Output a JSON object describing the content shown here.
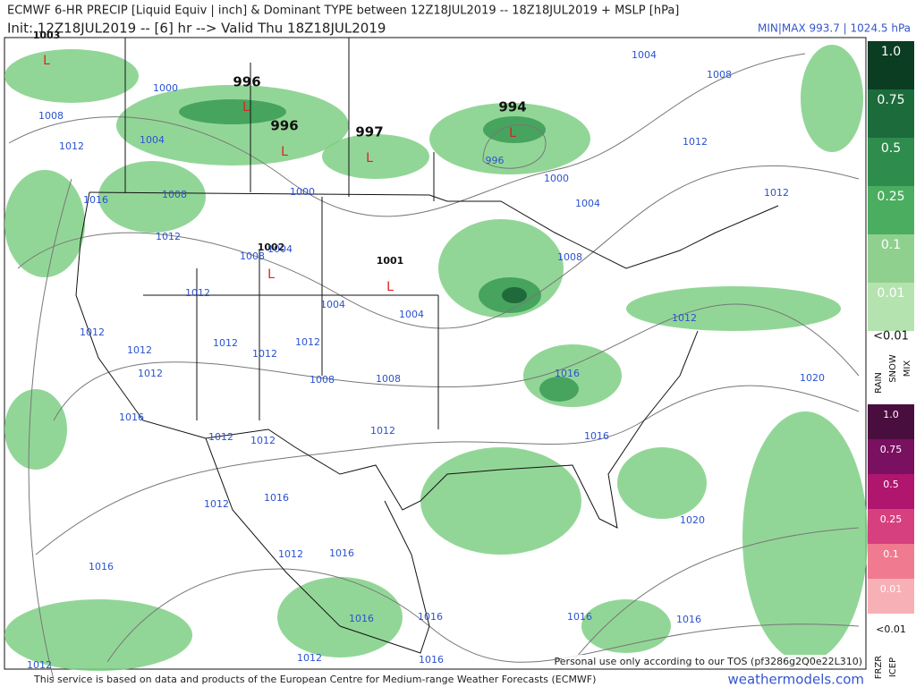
{
  "header": {
    "title": "ECMWF 6-HR PRECIP [Liquid Equiv | inch] & Dominant TYPE between 12Z18JUL2019 -- 18Z18JUL2019 + MSLP [hPa]",
    "init": "Init: 12Z18JUL2019 -- [6] hr --> Valid Thu 18Z18JUL2019",
    "minmax": "MIN|MAX 993.7 | 1024.5 hPa"
  },
  "map": {
    "low_marker": "L",
    "lows": [
      1003,
      996,
      996,
      997,
      994,
      1002,
      1001
    ],
    "isobar_labels": [
      1004,
      1008,
      1000,
      1008,
      1012,
      1004,
      1012,
      996,
      1000,
      1012,
      1000,
      1004,
      1016,
      1008,
      1012,
      1004,
      1008,
      1008,
      1012,
      1004,
      1004,
      1012,
      1012,
      1012,
      1012,
      1012,
      1012,
      1012,
      1008,
      1008,
      1016,
      1020,
      1016,
      1012,
      1012,
      1012,
      1016,
      1016,
      1012,
      1020,
      1016,
      1012,
      1016,
      1016,
      1016,
      1016,
      1016,
      1012,
      1012,
      1016
    ]
  },
  "legend": {
    "rain_scale": [
      "1.0",
      "0.75",
      "0.5",
      "0.25",
      "0.1",
      "0.01"
    ],
    "rain_below": "<0.01",
    "rain_types": [
      "RAIN",
      "SNOW",
      "MIX"
    ],
    "ice_scale": [
      "1.0",
      "0.75",
      "0.5",
      "0.25",
      "0.1",
      "0.01"
    ],
    "ice_below": "<0.01",
    "ice_types": [
      "FRZR",
      "ICEP"
    ]
  },
  "footer": {
    "source": "This service is based on data and products of the European Centre for Medium-range Weather Forecasts (ECMWF)",
    "tos": "Personal use only according to our TOS (pf3286g2Q0e22L310)",
    "site": "weathermodels.com"
  }
}
